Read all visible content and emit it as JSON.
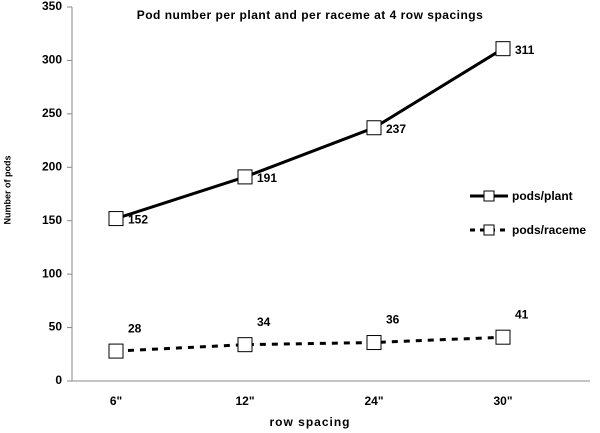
{
  "chart_data": {
    "type": "line",
    "title": "Pod number  per plant and per raceme at 4 row spacings",
    "xlabel": "row spacing",
    "ylabel": "Number of pods",
    "categories": [
      "6\"",
      "12\"",
      "24\"",
      "30\""
    ],
    "series": [
      {
        "name": "pods/plant",
        "color": "#000000",
        "line_style": "solid",
        "values": [
          152,
          191,
          237,
          311
        ]
      },
      {
        "name": "pods/raceme",
        "color": "#000000",
        "line_style": "dashed",
        "values": [
          28,
          34,
          36,
          41
        ]
      }
    ],
    "ylim": [
      0,
      350
    ],
    "yticks": [
      0,
      50,
      100,
      150,
      200,
      250,
      300,
      350
    ],
    "grid": false,
    "data_labels": true,
    "legend": "right"
  }
}
